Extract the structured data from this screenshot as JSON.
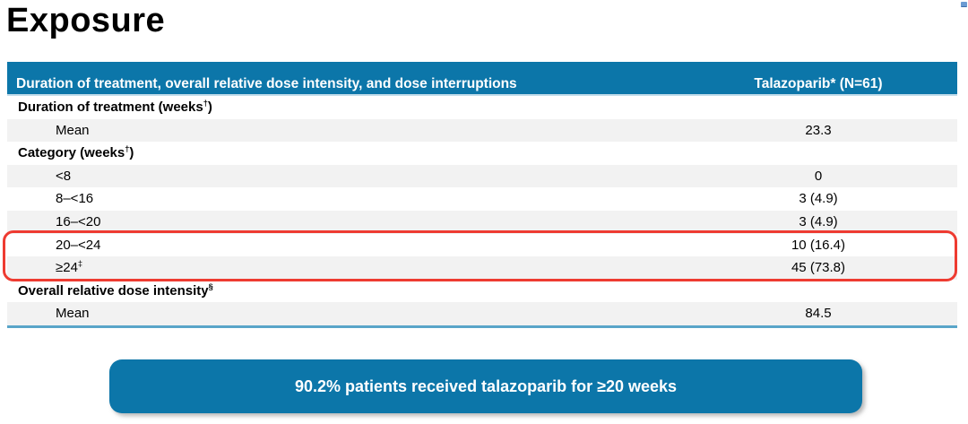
{
  "slide": {
    "title": "Exposure"
  },
  "colors": {
    "accent_teal": "#0c76a9",
    "row_alt_gray": "#f2f2f2",
    "highlight_red": "#ee3b31",
    "table_bottom_border": "#5aa5c9",
    "text_black": "#000000",
    "text_white": "#ffffff"
  },
  "table": {
    "header": {
      "label": "Duration of treatment, overall relative dose intensity, and dose interruptions",
      "value": "Talazoparib* (N=61)"
    },
    "rows": [
      {
        "pre": "Duration of treatment (weeks",
        "sup": "†",
        "post": ")",
        "value": ""
      },
      {
        "pre": "Mean",
        "sup": "",
        "post": "",
        "value": "23.3"
      },
      {
        "pre": "Category (weeks",
        "sup": "†",
        "post": ")",
        "value": ""
      },
      {
        "pre": "<8",
        "sup": "",
        "post": "",
        "value": "0"
      },
      {
        "pre": "8–<16",
        "sup": "",
        "post": "",
        "value": "3 (4.9)"
      },
      {
        "pre": "16–<20",
        "sup": "",
        "post": "",
        "value": "3 (4.9)"
      },
      {
        "pre": "20–<24",
        "sup": "",
        "post": "",
        "value": "10 (16.4)"
      },
      {
        "pre": "≥24",
        "sup": "‡",
        "post": "",
        "value": "45 (73.8)"
      },
      {
        "pre": "Overall relative dose intensity",
        "sup": "§",
        "post": "",
        "value": ""
      },
      {
        "pre": "Mean",
        "sup": "",
        "post": "",
        "value": "84.5"
      }
    ],
    "highlighted_rows": "20–<24 and ≥24‡"
  },
  "callout": {
    "text": "90.2% patients received talazoparib for ≥20 weeks"
  }
}
